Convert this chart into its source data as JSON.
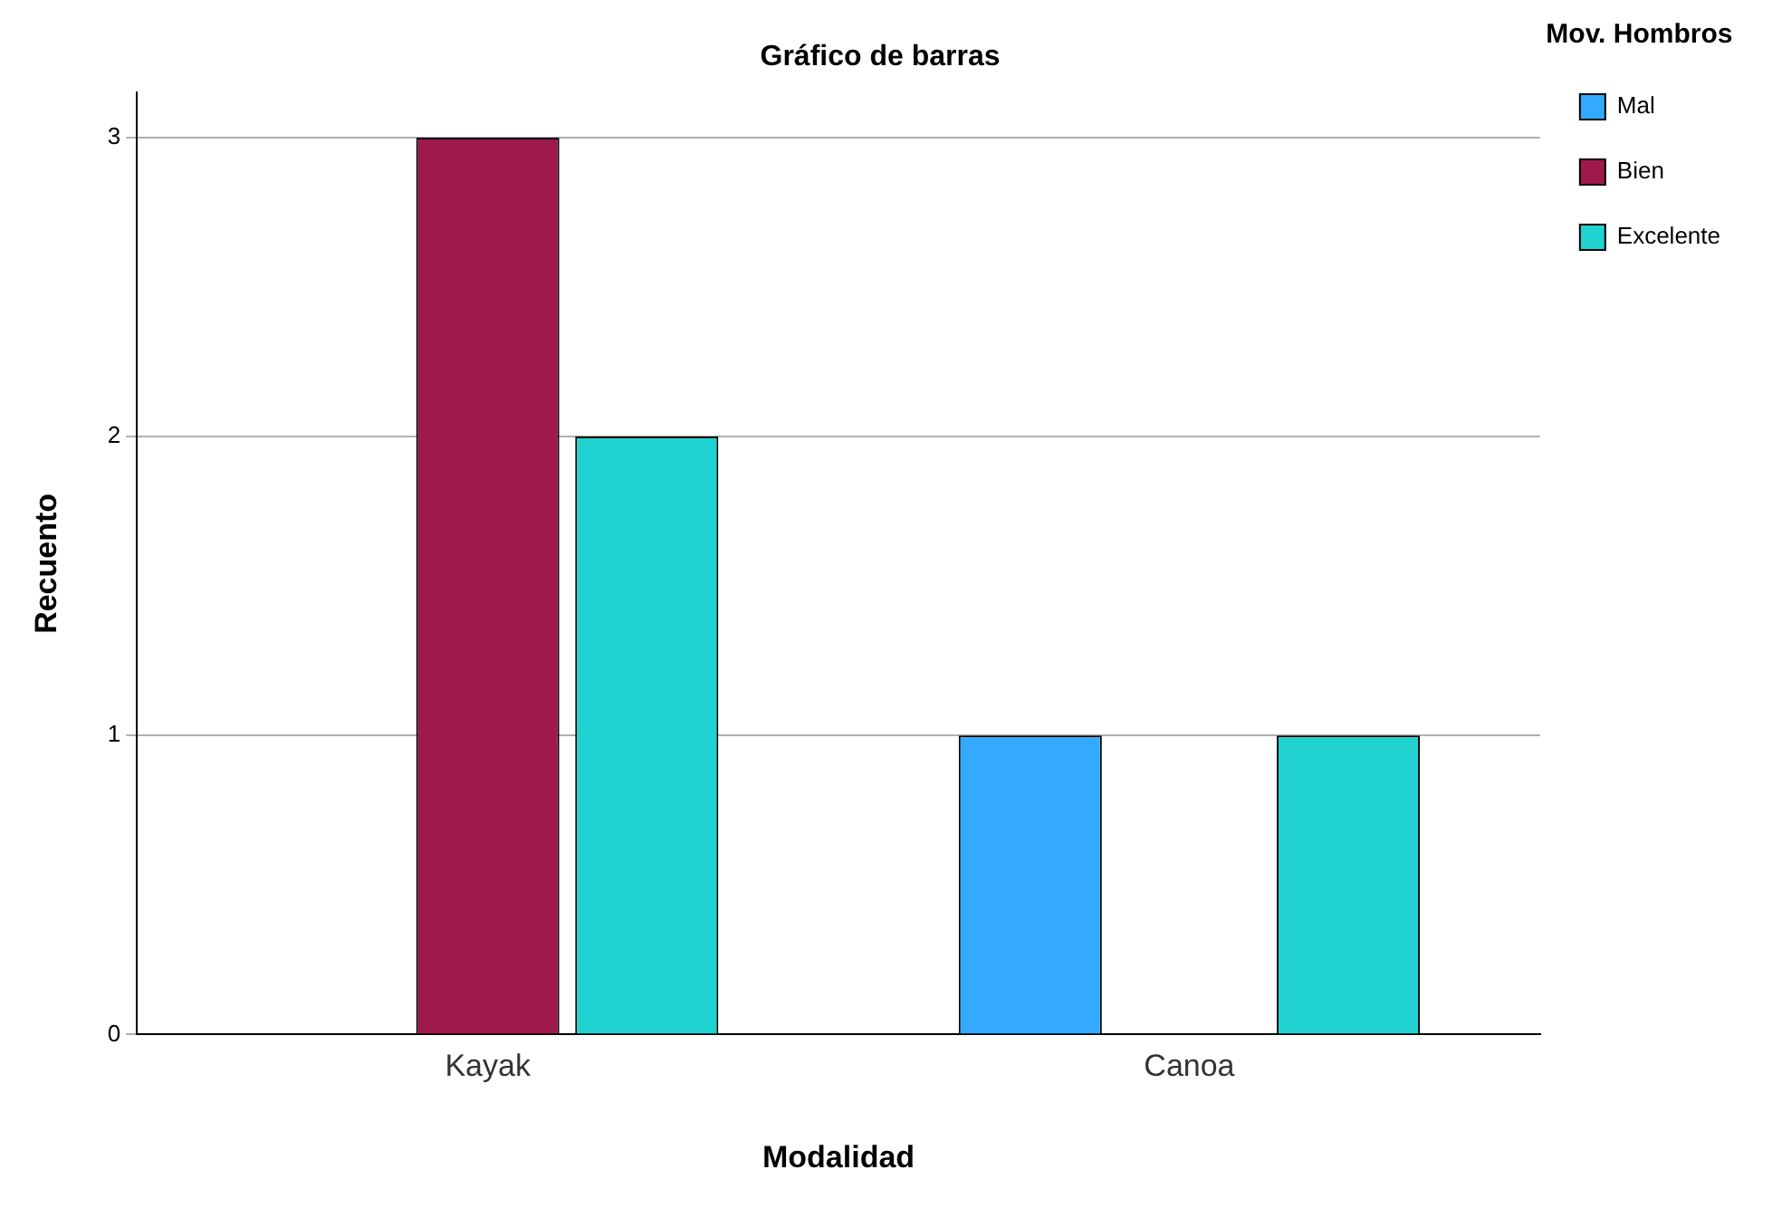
{
  "chart_data": {
    "type": "bar",
    "title": "Gráfico de barras",
    "xlabel": "Modalidad",
    "ylabel": "Recuento",
    "legend_title": "Mov. Hombros",
    "categories": [
      "Kayak",
      "Canoa"
    ],
    "series": [
      {
        "name": "Mal",
        "color": "#33aaff",
        "values": [
          null,
          1
        ]
      },
      {
        "name": "Bien",
        "color": "#9e1a4a",
        "values": [
          3,
          null
        ]
      },
      {
        "name": "Excelente",
        "color": "#20d2d0",
        "values": [
          2,
          1
        ]
      }
    ],
    "ylim": [
      0,
      3.15
    ],
    "yticks": [
      0,
      1,
      2,
      3
    ],
    "grid": "y",
    "legend": "top right"
  }
}
